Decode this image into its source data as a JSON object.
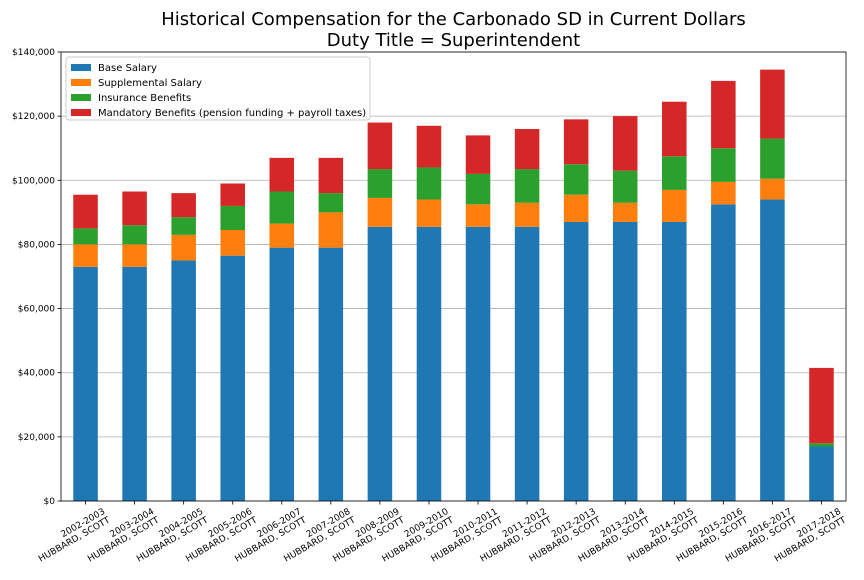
{
  "chart_data": {
    "type": "bar",
    "stacked": true,
    "title": [
      "Historical Compensation for the Carbonado SD in Current Dollars",
      "Duty Title = Superintendent"
    ],
    "xlabel": "",
    "ylabel": "",
    "ylim": [
      0,
      140000
    ],
    "yticks": [
      0,
      20000,
      40000,
      60000,
      80000,
      100000,
      120000,
      140000
    ],
    "ytick_labels": [
      "$0",
      "$20,000",
      "$40,000",
      "$60,000",
      "$80,000",
      "$100,000",
      "$120,000",
      "$140,000"
    ],
    "grid": "horizontal",
    "legend_position": "top-left",
    "categories": [
      [
        "2002-2003",
        "HUBBARD, SCOTT"
      ],
      [
        "2003-2004",
        "HUBBARD, SCOTT"
      ],
      [
        "2004-2005",
        "HUBBARD, SCOTT"
      ],
      [
        "2005-2006",
        "HUBBARD, SCOTT"
      ],
      [
        "2006-2007",
        "HUBBARD, SCOTT"
      ],
      [
        "2007-2008",
        "HUBBARD, SCOTT"
      ],
      [
        "2008-2009",
        "HUBBARD, SCOTT"
      ],
      [
        "2009-2010",
        "HUBBARD, SCOTT"
      ],
      [
        "2010-2011",
        "HUBBARD, SCOTT"
      ],
      [
        "2011-2012",
        "HUBBARD, SCOTT"
      ],
      [
        "2012-2013",
        "HUBBARD, SCOTT"
      ],
      [
        "2013-2014",
        "HUBBARD, SCOTT"
      ],
      [
        "2014-2015",
        "HUBBARD, SCOTT"
      ],
      [
        "2015-2016",
        "HUBBARD, SCOTT"
      ],
      [
        "2016-2017",
        "HUBBARD, SCOTT"
      ],
      [
        "2017-2018",
        "HUBBARD, SCOTT"
      ]
    ],
    "series": [
      {
        "name": "Base Salary",
        "color": "#1f77b4",
        "values": [
          73000,
          73000,
          75000,
          76500,
          79000,
          79000,
          85500,
          85500,
          85500,
          85500,
          87000,
          87000,
          87000,
          92500,
          94000,
          17000
        ]
      },
      {
        "name": "Supplemental Salary",
        "color": "#ff7f0e",
        "values": [
          7000,
          7000,
          8000,
          8000,
          7500,
          11000,
          9000,
          8500,
          7000,
          7500,
          8500,
          6000,
          10000,
          7000,
          6500,
          0
        ]
      },
      {
        "name": "Insurance Benefits",
        "color": "#2ca02c",
        "values": [
          5000,
          6000,
          5500,
          7500,
          10000,
          6000,
          9000,
          10000,
          9500,
          10500,
          9500,
          10000,
          10500,
          10500,
          12500,
          1000
        ]
      },
      {
        "name": "Mandatory Benefits (pension funding + payroll taxes)",
        "color": "#d62728",
        "values": [
          10500,
          10500,
          7500,
          7000,
          10500,
          11000,
          14500,
          13000,
          12000,
          12500,
          14000,
          17000,
          17000,
          21000,
          21500,
          23500
        ]
      }
    ]
  }
}
